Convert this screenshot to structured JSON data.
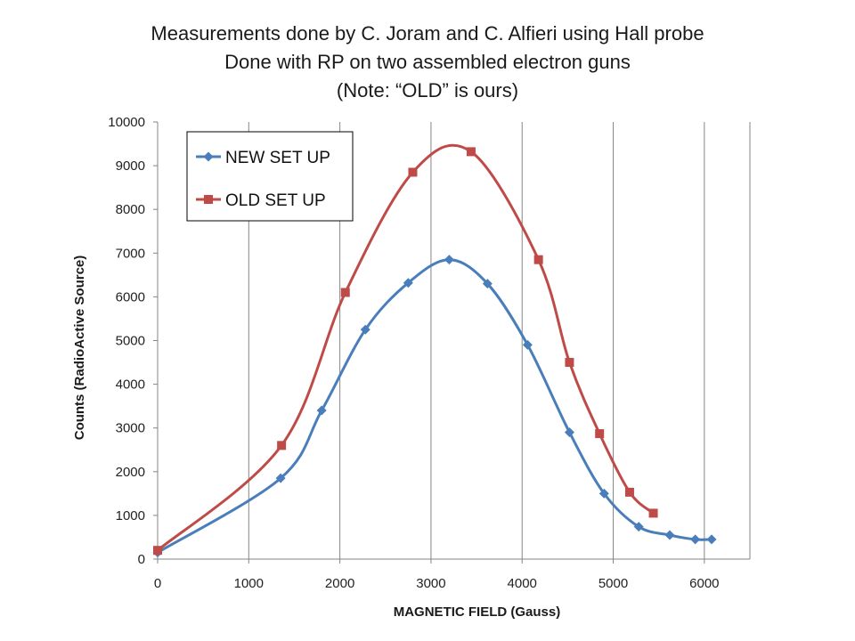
{
  "title": {
    "line1": "Measurements done by C. Joram and C. Alfieri using Hall probe",
    "line2": "Done with RP on two assembled electron guns",
    "line3": "(Note: “OLD” is ours)"
  },
  "chart_data": {
    "type": "line",
    "title": "Measurements done by C. Joram and C. Alfieri using Hall probe / Done with RP on two assembled electron guns / (Note: “OLD” is ours)",
    "xlabel": "MAGNETIC FIELD (Gauss)",
    "ylabel": "Counts (RadioActive Source)",
    "xlim": [
      0,
      6500
    ],
    "ylim": [
      0,
      10000
    ],
    "xticks": [
      0,
      1000,
      2000,
      3000,
      4000,
      5000,
      6000
    ],
    "yticks": [
      0,
      1000,
      2000,
      3000,
      4000,
      5000,
      6000,
      7000,
      8000,
      9000,
      10000
    ],
    "grid": "vertical",
    "legend": "top-left",
    "smooth": true,
    "series": [
      {
        "name": "NEW SET UP",
        "color": "#4a7ebb",
        "marker": "diamond",
        "x": [
          0,
          1350,
          1800,
          2280,
          2750,
          3200,
          3620,
          4060,
          4520,
          4900,
          5280,
          5620,
          5900,
          6080
        ],
        "y": [
          150,
          1850,
          3400,
          5250,
          6320,
          6850,
          6300,
          4900,
          2900,
          1500,
          740,
          550,
          450,
          450
        ]
      },
      {
        "name": "OLD SET UP",
        "color": "#be4b48",
        "marker": "square",
        "x": [
          0,
          1360,
          2060,
          2800,
          3440,
          4180,
          4520,
          4850,
          5180,
          5440
        ],
        "y": [
          200,
          2600,
          6100,
          8850,
          9320,
          6850,
          4500,
          2870,
          1530,
          1050
        ]
      }
    ]
  }
}
